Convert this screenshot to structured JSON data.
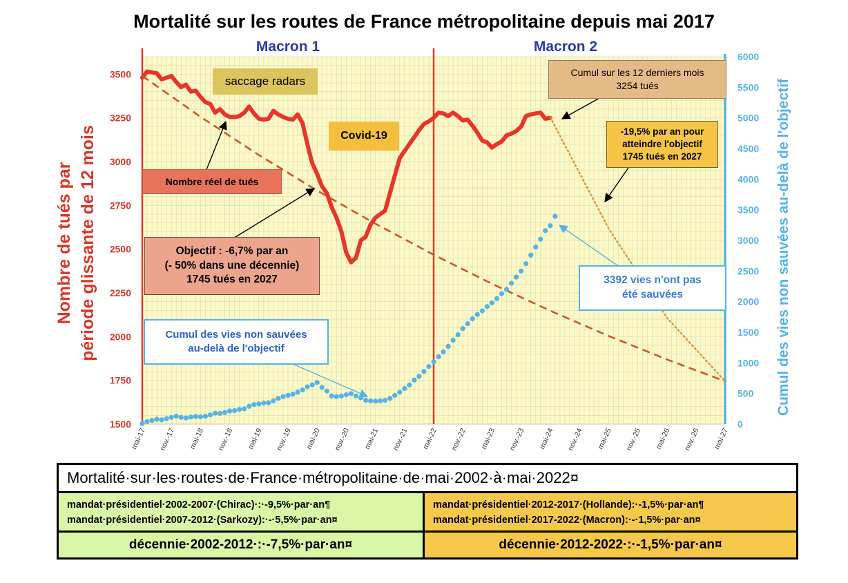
{
  "chart_data": {
    "type": "line",
    "title": "Mortalité sur les routes de France métropolitaine depuis mai 2017",
    "ylabel": "Nombre de tués par période glissante de 12 mois",
    "y2label": "Cumul des vies non sauvées au-delà de l'objectif",
    "ylim": [
      1500,
      3600
    ],
    "y2lim": [
      0,
      6000
    ],
    "yticks": [
      1500,
      1750,
      2000,
      2250,
      2500,
      2750,
      3000,
      3250,
      3500
    ],
    "y2ticks": [
      0,
      500,
      1000,
      1500,
      2000,
      2500,
      3000,
      3500,
      4000,
      4500,
      5000,
      5500,
      6000
    ],
    "xlim": [
      "2017-05",
      "2027-05"
    ],
    "xticks": [
      "mai-17",
      "nov.-17",
      "mai-18",
      "nov.-18",
      "mai-19",
      "nov.-19",
      "mai-20",
      "nov.-20",
      "mai-21",
      "nov.-21",
      "mai-22",
      "nov.-22",
      "mai-23",
      "nov.-23",
      "mai-24",
      "nov.-24",
      "mai-25",
      "nov.-25",
      "mai-26",
      "nov.-26",
      "mai-27"
    ],
    "grid": true,
    "background": "#fdf9c4",
    "mandates": [
      {
        "label": "Macron 1",
        "start": "2017-05"
      },
      {
        "label": "Macron 2",
        "start": "2022-05"
      }
    ],
    "series": [
      {
        "name": "Nombre réel de tués",
        "color": "#e8352a",
        "style": "solid",
        "axis": "left",
        "points": [
          [
            "2017-05",
            3480
          ],
          [
            "2017-06",
            3515
          ],
          [
            "2017-07",
            3510
          ],
          [
            "2017-08",
            3505
          ],
          [
            "2017-09",
            3470
          ],
          [
            "2017-10",
            3480
          ],
          [
            "2017-11",
            3490
          ],
          [
            "2017-12",
            3455
          ],
          [
            "2018-01",
            3425
          ],
          [
            "2018-02",
            3440
          ],
          [
            "2018-03",
            3400
          ],
          [
            "2018-04",
            3405
          ],
          [
            "2018-05",
            3370
          ],
          [
            "2018-06",
            3340
          ],
          [
            "2018-07",
            3330
          ],
          [
            "2018-08",
            3280
          ],
          [
            "2018-09",
            3300
          ],
          [
            "2018-10",
            3270
          ],
          [
            "2018-11",
            3255
          ],
          [
            "2018-12",
            3255
          ],
          [
            "2019-01",
            3260
          ],
          [
            "2019-02",
            3280
          ],
          [
            "2019-03",
            3315
          ],
          [
            "2019-04",
            3275
          ],
          [
            "2019-05",
            3245
          ],
          [
            "2019-06",
            3240
          ],
          [
            "2019-07",
            3245
          ],
          [
            "2019-08",
            3290
          ],
          [
            "2019-09",
            3270
          ],
          [
            "2019-10",
            3255
          ],
          [
            "2019-11",
            3245
          ],
          [
            "2019-12",
            3240
          ],
          [
            "2020-01",
            3270
          ],
          [
            "2020-02",
            3220
          ],
          [
            "2020-03",
            3100
          ],
          [
            "2020-04",
            2990
          ],
          [
            "2020-05",
            2930
          ],
          [
            "2020-06",
            2860
          ],
          [
            "2020-07",
            2820
          ],
          [
            "2020-08",
            2740
          ],
          [
            "2020-09",
            2680
          ],
          [
            "2020-10",
            2600
          ],
          [
            "2020-11",
            2480
          ],
          [
            "2020-12",
            2425
          ],
          [
            "2021-01",
            2450
          ],
          [
            "2021-02",
            2550
          ],
          [
            "2021-03",
            2570
          ],
          [
            "2021-04",
            2640
          ],
          [
            "2021-05",
            2680
          ],
          [
            "2021-06",
            2700
          ],
          [
            "2021-07",
            2720
          ],
          [
            "2021-08",
            2820
          ],
          [
            "2021-09",
            2920
          ],
          [
            "2021-10",
            3020
          ],
          [
            "2021-11",
            3060
          ],
          [
            "2021-12",
            3100
          ],
          [
            "2022-01",
            3140
          ],
          [
            "2022-02",
            3180
          ],
          [
            "2022-03",
            3215
          ],
          [
            "2022-04",
            3230
          ],
          [
            "2022-05",
            3250
          ],
          [
            "2022-06",
            3280
          ],
          [
            "2022-07",
            3275
          ],
          [
            "2022-08",
            3260
          ],
          [
            "2022-09",
            3280
          ],
          [
            "2022-10",
            3260
          ],
          [
            "2022-11",
            3235
          ],
          [
            "2022-12",
            3240
          ],
          [
            "2023-01",
            3205
          ],
          [
            "2023-02",
            3165
          ],
          [
            "2023-03",
            3120
          ],
          [
            "2023-04",
            3110
          ],
          [
            "2023-05",
            3080
          ],
          [
            "2023-06",
            3100
          ],
          [
            "2023-07",
            3115
          ],
          [
            "2023-08",
            3150
          ],
          [
            "2023-09",
            3160
          ],
          [
            "2023-10",
            3175
          ],
          [
            "2023-11",
            3200
          ],
          [
            "2023-12",
            3260
          ],
          [
            "2024-01",
            3270
          ],
          [
            "2024-02",
            3275
          ],
          [
            "2024-03",
            3280
          ],
          [
            "2024-04",
            3245
          ],
          [
            "2024-05",
            3250
          ]
        ]
      },
      {
        "name": "Objectif : -6,7% par an",
        "color": "#c8572b",
        "style": "dashed",
        "axis": "left",
        "points": [
          [
            "2017-05",
            3490
          ],
          [
            "2018-05",
            3256
          ],
          [
            "2019-05",
            3038
          ],
          [
            "2020-05",
            2835
          ],
          [
            "2021-05",
            2645
          ],
          [
            "2022-05",
            2468
          ],
          [
            "2023-05",
            2302
          ],
          [
            "2024-05",
            2148
          ],
          [
            "2025-05",
            2004
          ],
          [
            "2026-05",
            1870
          ],
          [
            "2027-05",
            1745
          ]
        ]
      },
      {
        "name": "-19,5% par an pour atteindre l'objectif",
        "color": "#d5953f",
        "style": "dotted",
        "axis": "left",
        "points": [
          [
            "2024-05",
            3254
          ],
          [
            "2025-05",
            2619
          ],
          [
            "2026-05",
            2109
          ],
          [
            "2027-05",
            1745
          ]
        ]
      },
      {
        "name": "Cumul des vies non sauvées au-delà de l'objectif",
        "color": "#55b3e8",
        "style": "dots",
        "axis": "right",
        "points": [
          [
            "2017-05",
            10
          ],
          [
            "2017-06",
            40
          ],
          [
            "2017-07",
            60
          ],
          [
            "2017-08",
            80
          ],
          [
            "2017-09",
            70
          ],
          [
            "2017-10",
            90
          ],
          [
            "2017-11",
            110
          ],
          [
            "2017-12",
            130
          ],
          [
            "2018-01",
            110
          ],
          [
            "2018-02",
            100
          ],
          [
            "2018-03",
            115
          ],
          [
            "2018-04",
            125
          ],
          [
            "2018-05",
            120
          ],
          [
            "2018-06",
            130
          ],
          [
            "2018-07",
            150
          ],
          [
            "2018-08",
            180
          ],
          [
            "2018-09",
            175
          ],
          [
            "2018-10",
            190
          ],
          [
            "2018-11",
            215
          ],
          [
            "2018-12",
            220
          ],
          [
            "2019-01",
            240
          ],
          [
            "2019-02",
            250
          ],
          [
            "2019-03",
            290
          ],
          [
            "2019-04",
            320
          ],
          [
            "2019-05",
            330
          ],
          [
            "2019-06",
            345
          ],
          [
            "2019-07",
            350
          ],
          [
            "2019-08",
            380
          ],
          [
            "2019-09",
            420
          ],
          [
            "2019-10",
            450
          ],
          [
            "2019-11",
            470
          ],
          [
            "2019-12",
            490
          ],
          [
            "2020-01",
            520
          ],
          [
            "2020-02",
            560
          ],
          [
            "2020-03",
            610
          ],
          [
            "2020-04",
            640
          ],
          [
            "2020-05",
            680
          ],
          [
            "2020-06",
            600
          ],
          [
            "2020-07",
            540
          ],
          [
            "2020-08",
            460
          ],
          [
            "2020-09",
            450
          ],
          [
            "2020-10",
            460
          ],
          [
            "2020-11",
            480
          ],
          [
            "2020-12",
            500
          ],
          [
            "2021-01",
            460
          ],
          [
            "2021-02",
            430
          ],
          [
            "2021-03",
            390
          ],
          [
            "2021-04",
            380
          ],
          [
            "2021-05",
            375
          ],
          [
            "2021-06",
            380
          ],
          [
            "2021-07",
            390
          ],
          [
            "2021-08",
            420
          ],
          [
            "2021-09",
            470
          ],
          [
            "2021-10",
            520
          ],
          [
            "2021-11",
            580
          ],
          [
            "2021-12",
            640
          ],
          [
            "2022-01",
            720
          ],
          [
            "2022-02",
            780
          ],
          [
            "2022-03",
            860
          ],
          [
            "2022-04",
            940
          ],
          [
            "2022-05",
            1020
          ],
          [
            "2022-06",
            1100
          ],
          [
            "2022-07",
            1180
          ],
          [
            "2022-08",
            1270
          ],
          [
            "2022-09",
            1370
          ],
          [
            "2022-10",
            1460
          ],
          [
            "2022-11",
            1560
          ],
          [
            "2022-12",
            1640
          ],
          [
            "2023-01",
            1720
          ],
          [
            "2023-02",
            1790
          ],
          [
            "2023-03",
            1850
          ],
          [
            "2023-04",
            1920
          ],
          [
            "2023-05",
            1980
          ],
          [
            "2023-06",
            2050
          ],
          [
            "2023-07",
            2130
          ],
          [
            "2023-08",
            2200
          ],
          [
            "2023-09",
            2300
          ],
          [
            "2023-10",
            2400
          ],
          [
            "2023-11",
            2500
          ],
          [
            "2023-12",
            2620
          ],
          [
            "2024-01",
            2760
          ],
          [
            "2024-02",
            2890
          ],
          [
            "2024-03",
            3020
          ],
          [
            "2024-04",
            3160
          ],
          [
            "2024-05",
            3240
          ],
          [
            "2024-06",
            3392
          ]
        ]
      }
    ],
    "annotations": {
      "radars": "saccage radars",
      "covid": "Covid-19",
      "real_deaths": "Nombre réel de tués",
      "cumul_title": "Cumul sur les 12 derniers mois",
      "cumul_value": "3254 tués",
      "required_l1": "-19,5% par an pour",
      "required_l2": "atteindre l'objectif",
      "required_l3": "1745 tués en 2027",
      "objective_l1": "Objectif : -6,7% par an",
      "objective_l2": "(- 50% dans une décennie)",
      "objective_l3": "1745 tués en 2027",
      "cumul_lives_l1": "Cumul des vies non sauvées",
      "cumul_lives_l2": "au-delà de l'objectif",
      "lost_lives_l1": "3392 vies n'ont pas",
      "lost_lives_l2": "été sauvées"
    }
  },
  "table": {
    "title": "Mortalité·sur·les·routes·de·France·métropolitaine·de·mai·2002·à·mai·2022¤",
    "left_mandates": [
      "mandat·présidentiel·2002-2007·(Chirac)·:·-9,5%·par·an¶",
      "mandat·présidentiel·2007-2012·(Sarkozy):·-·5,5%·par·an¤"
    ],
    "right_mandates": [
      "mandat·présidentiel·2012-2017·(Hollande):·-1,5%·par·an¶",
      "mandat·présidentiel·2017-2022·(Macron):·-·1,5%·par·an¤"
    ],
    "left_decade": "décennie·2002-2012·:·-7,5%·par·an¤",
    "right_decade": "décennie·2012-2022·:·-1,5%·par·an¤",
    "colors": {
      "left": "#d9f7a6",
      "right": "#f6c94d"
    }
  }
}
